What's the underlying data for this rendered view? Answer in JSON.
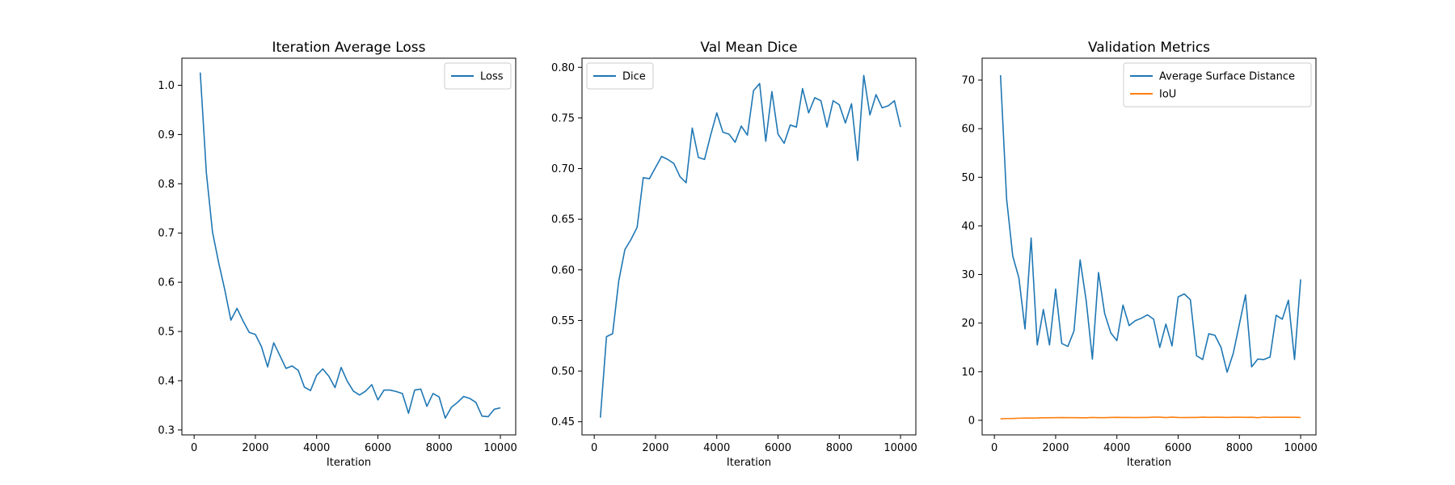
{
  "chart_data": [
    {
      "type": "line",
      "title": "Iteration Average Loss",
      "xlabel": "Iteration",
      "ylabel": "",
      "xlim": [
        -400,
        10500
      ],
      "ylim": [
        0.29,
        1.055
      ],
      "xticks": [
        0,
        2000,
        4000,
        6000,
        8000,
        10000
      ],
      "yticks": [
        0.3,
        0.4,
        0.5,
        0.6,
        0.7,
        0.8,
        0.9,
        1.0
      ],
      "ytick_decimals": 1,
      "legend": "top-right",
      "x": [
        200,
        400,
        600,
        800,
        1000,
        1200,
        1400,
        1600,
        1800,
        2000,
        2200,
        2400,
        2600,
        2800,
        3000,
        3200,
        3400,
        3600,
        3800,
        4000,
        4200,
        4400,
        4600,
        4800,
        5000,
        5200,
        5400,
        5600,
        5800,
        6000,
        6200,
        6400,
        6600,
        6800,
        7000,
        7200,
        7400,
        7600,
        7800,
        8000,
        8200,
        8400,
        8600,
        8800,
        9000,
        9200,
        9400,
        9600,
        9800,
        10000
      ],
      "series": [
        {
          "name": "Loss",
          "color": "#1f77b4",
          "values": [
            1.026,
            0.822,
            0.702,
            0.64,
            0.585,
            0.523,
            0.547,
            0.521,
            0.498,
            0.494,
            0.469,
            0.428,
            0.477,
            0.451,
            0.425,
            0.43,
            0.421,
            0.387,
            0.38,
            0.411,
            0.424,
            0.409,
            0.386,
            0.427,
            0.399,
            0.379,
            0.371,
            0.379,
            0.392,
            0.361,
            0.381,
            0.381,
            0.378,
            0.374,
            0.334,
            0.381,
            0.383,
            0.348,
            0.374,
            0.367,
            0.324,
            0.346,
            0.356,
            0.368,
            0.364,
            0.356,
            0.328,
            0.327,
            0.342,
            0.345
          ]
        }
      ]
    },
    {
      "type": "line",
      "title": "Val Mean Dice",
      "xlabel": "Iteration",
      "ylabel": "",
      "xlim": [
        -400,
        10500
      ],
      "ylim": [
        0.437,
        0.809
      ],
      "xticks": [
        0,
        2000,
        4000,
        6000,
        8000,
        10000
      ],
      "yticks": [
        0.45,
        0.5,
        0.55,
        0.6,
        0.65,
        0.7,
        0.75,
        0.8
      ],
      "ytick_decimals": 2,
      "legend": "top-left",
      "x": [
        200,
        400,
        600,
        800,
        1000,
        1200,
        1400,
        1600,
        1800,
        2000,
        2200,
        2400,
        2600,
        2800,
        3000,
        3200,
        3400,
        3600,
        3800,
        4000,
        4200,
        4400,
        4600,
        4800,
        5000,
        5200,
        5400,
        5600,
        5800,
        6000,
        6200,
        6400,
        6600,
        6800,
        7000,
        7200,
        7400,
        7600,
        7800,
        8000,
        8200,
        8400,
        8600,
        8800,
        9000,
        9200,
        9400,
        9600,
        9800,
        10000
      ],
      "series": [
        {
          "name": "Dice",
          "color": "#1f77b4",
          "values": [
            0.454,
            0.534,
            0.537,
            0.589,
            0.62,
            0.63,
            0.642,
            0.691,
            0.69,
            0.701,
            0.712,
            0.709,
            0.705,
            0.692,
            0.686,
            0.74,
            0.711,
            0.709,
            0.733,
            0.755,
            0.736,
            0.734,
            0.726,
            0.742,
            0.733,
            0.777,
            0.784,
            0.727,
            0.776,
            0.734,
            0.725,
            0.743,
            0.741,
            0.779,
            0.755,
            0.77,
            0.767,
            0.741,
            0.767,
            0.763,
            0.745,
            0.764,
            0.708,
            0.792,
            0.753,
            0.773,
            0.76,
            0.762,
            0.767,
            0.741
          ]
        }
      ]
    },
    {
      "type": "line",
      "title": "Validation Metrics",
      "xlabel": "Iteration",
      "ylabel": "",
      "xlim": [
        -400,
        10500
      ],
      "ylim": [
        -3.0,
        74.5
      ],
      "xticks": [
        0,
        2000,
        4000,
        6000,
        8000,
        10000
      ],
      "yticks": [
        0,
        10,
        20,
        30,
        40,
        50,
        60,
        70
      ],
      "ytick_decimals": 0,
      "legend": "top-right",
      "x": [
        200,
        400,
        600,
        800,
        1000,
        1200,
        1400,
        1600,
        1800,
        2000,
        2200,
        2400,
        2600,
        2800,
        3000,
        3200,
        3400,
        3600,
        3800,
        4000,
        4200,
        4400,
        4600,
        4800,
        5000,
        5200,
        5400,
        5600,
        5800,
        6000,
        6200,
        6400,
        6600,
        6800,
        7000,
        7200,
        7400,
        7600,
        7800,
        8000,
        8200,
        8400,
        8600,
        8800,
        9000,
        9200,
        9400,
        9600,
        9800,
        10000
      ],
      "series": [
        {
          "name": "Average Surface Distance",
          "color": "#1f77b4",
          "values": [
            71.0,
            45.5,
            33.8,
            29.3,
            18.8,
            37.5,
            15.5,
            22.8,
            15.5,
            27.0,
            15.8,
            15.2,
            18.4,
            33.0,
            24.5,
            12.6,
            30.4,
            22.0,
            18.0,
            16.4,
            23.7,
            19.5,
            20.5,
            21.0,
            21.7,
            20.8,
            15.0,
            19.8,
            15.3,
            25.4,
            26.0,
            24.8,
            13.3,
            12.5,
            17.8,
            17.5,
            15.0,
            9.9,
            13.8,
            19.8,
            25.8,
            11.0,
            12.6,
            12.5,
            13.0,
            21.6,
            20.8,
            24.7,
            12.5,
            29.0
          ]
        },
        {
          "name": "IoU",
          "color": "#ff7f0e",
          "values": [
            0.3,
            0.37,
            0.38,
            0.43,
            0.47,
            0.47,
            0.48,
            0.53,
            0.52,
            0.54,
            0.56,
            0.55,
            0.55,
            0.53,
            0.52,
            0.59,
            0.55,
            0.55,
            0.58,
            0.61,
            0.58,
            0.58,
            0.57,
            0.59,
            0.58,
            0.64,
            0.65,
            0.57,
            0.64,
            0.58,
            0.57,
            0.59,
            0.59,
            0.64,
            0.61,
            0.63,
            0.63,
            0.59,
            0.63,
            0.62,
            0.6,
            0.62,
            0.55,
            0.66,
            0.61,
            0.63,
            0.62,
            0.62,
            0.63,
            0.59
          ]
        }
      ]
    }
  ]
}
